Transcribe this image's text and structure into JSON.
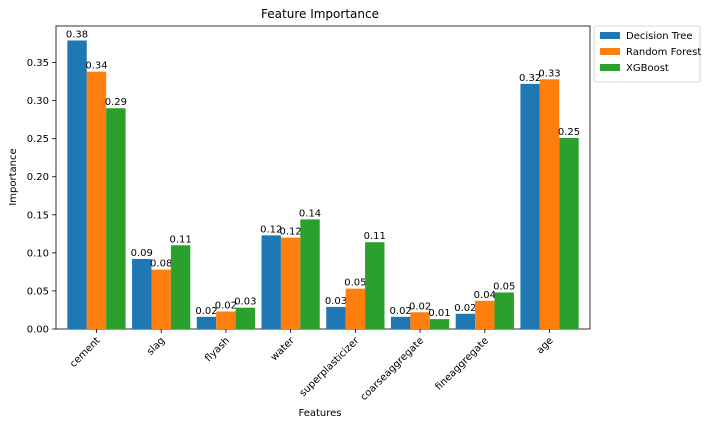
{
  "chart_data": {
    "type": "bar",
    "title": "Feature Importance",
    "xlabel": "Features",
    "ylabel": "Importance",
    "categories": [
      "cement",
      "slag",
      "flyash",
      "water",
      "superplasticizer",
      "coarseaggregate",
      "fineaggregate",
      "age"
    ],
    "series": [
      {
        "name": "Decision Tree",
        "color": "#1f77b4",
        "values": [
          0.379,
          0.092,
          0.016,
          0.123,
          0.029,
          0.016,
          0.02,
          0.322
        ]
      },
      {
        "name": "Random Forest",
        "color": "#ff7f0e",
        "values": [
          0.338,
          0.078,
          0.023,
          0.12,
          0.053,
          0.022,
          0.037,
          0.328
        ]
      },
      {
        "name": "XGBoost",
        "color": "#2ca02c",
        "values": [
          0.29,
          0.11,
          0.028,
          0.144,
          0.114,
          0.013,
          0.048,
          0.251
        ]
      }
    ],
    "data_labels": [
      [
        "0.38",
        "0.09",
        "0.02",
        "0.12",
        "0.03",
        "0.02",
        "0.02",
        "0.32"
      ],
      [
        "0.34",
        "0.08",
        "0.02",
        "0.12",
        "0.05",
        "0.02",
        "0.04",
        "0.33"
      ],
      [
        "0.29",
        "0.11",
        "0.03",
        "0.14",
        "0.11",
        "0.01",
        "0.05",
        "0.25"
      ]
    ],
    "yticks": [
      "0.00",
      "0.05",
      "0.10",
      "0.15",
      "0.20",
      "0.25",
      "0.30",
      "0.35"
    ],
    "ylim": [
      0,
      0.398
    ],
    "grid": false,
    "legend_position": "outside-top-right"
  }
}
